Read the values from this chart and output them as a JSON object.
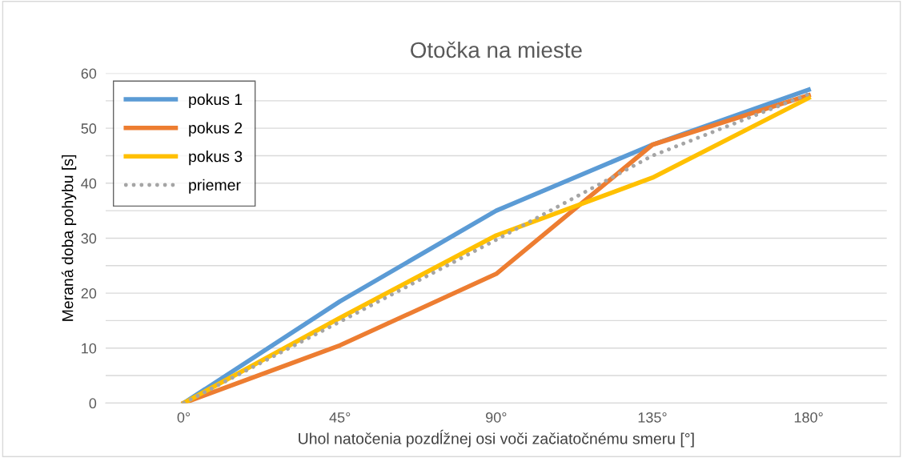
{
  "chart_data": {
    "type": "line",
    "title": "Otočka na mieste",
    "xlabel": "Uhol natočenia pozdĺžnej osi voči začiatočnému smeru [°]",
    "ylabel": "Meraná doba pohybu [s]",
    "categories": [
      "0°",
      "45°",
      "90°",
      "135°",
      "180°"
    ],
    "series": [
      {
        "name": "pokus 1",
        "color": "#5b9bd5",
        "values": [
          0,
          18.5,
          35,
          47,
          57
        ]
      },
      {
        "name": "pokus 2",
        "color": "#ed7d31",
        "values": [
          0,
          10.5,
          23.5,
          47,
          56
        ]
      },
      {
        "name": "pokus 3",
        "color": "#ffc000",
        "values": [
          0,
          15.5,
          30.5,
          41,
          55.5
        ]
      },
      {
        "name": "priemer",
        "color": "#a5a5a5",
        "values": [
          0,
          14.8,
          29.7,
          45,
          56.2
        ],
        "line_style": "dotted"
      }
    ],
    "ylim": [
      0,
      60
    ],
    "yticks": [
      0,
      {
        "value": 5,
        "label": null
      },
      10,
      {
        "value": 15,
        "label": null
      },
      20,
      {
        "value": 25,
        "label": null
      },
      30,
      {
        "value": 35,
        "label": null
      },
      40,
      {
        "value": 45,
        "label": null
      },
      50,
      {
        "value": 55,
        "label": null
      },
      60
    ],
    "grid": "y",
    "legend": "top left",
    "marker": "none",
    "line_style": "solid"
  }
}
